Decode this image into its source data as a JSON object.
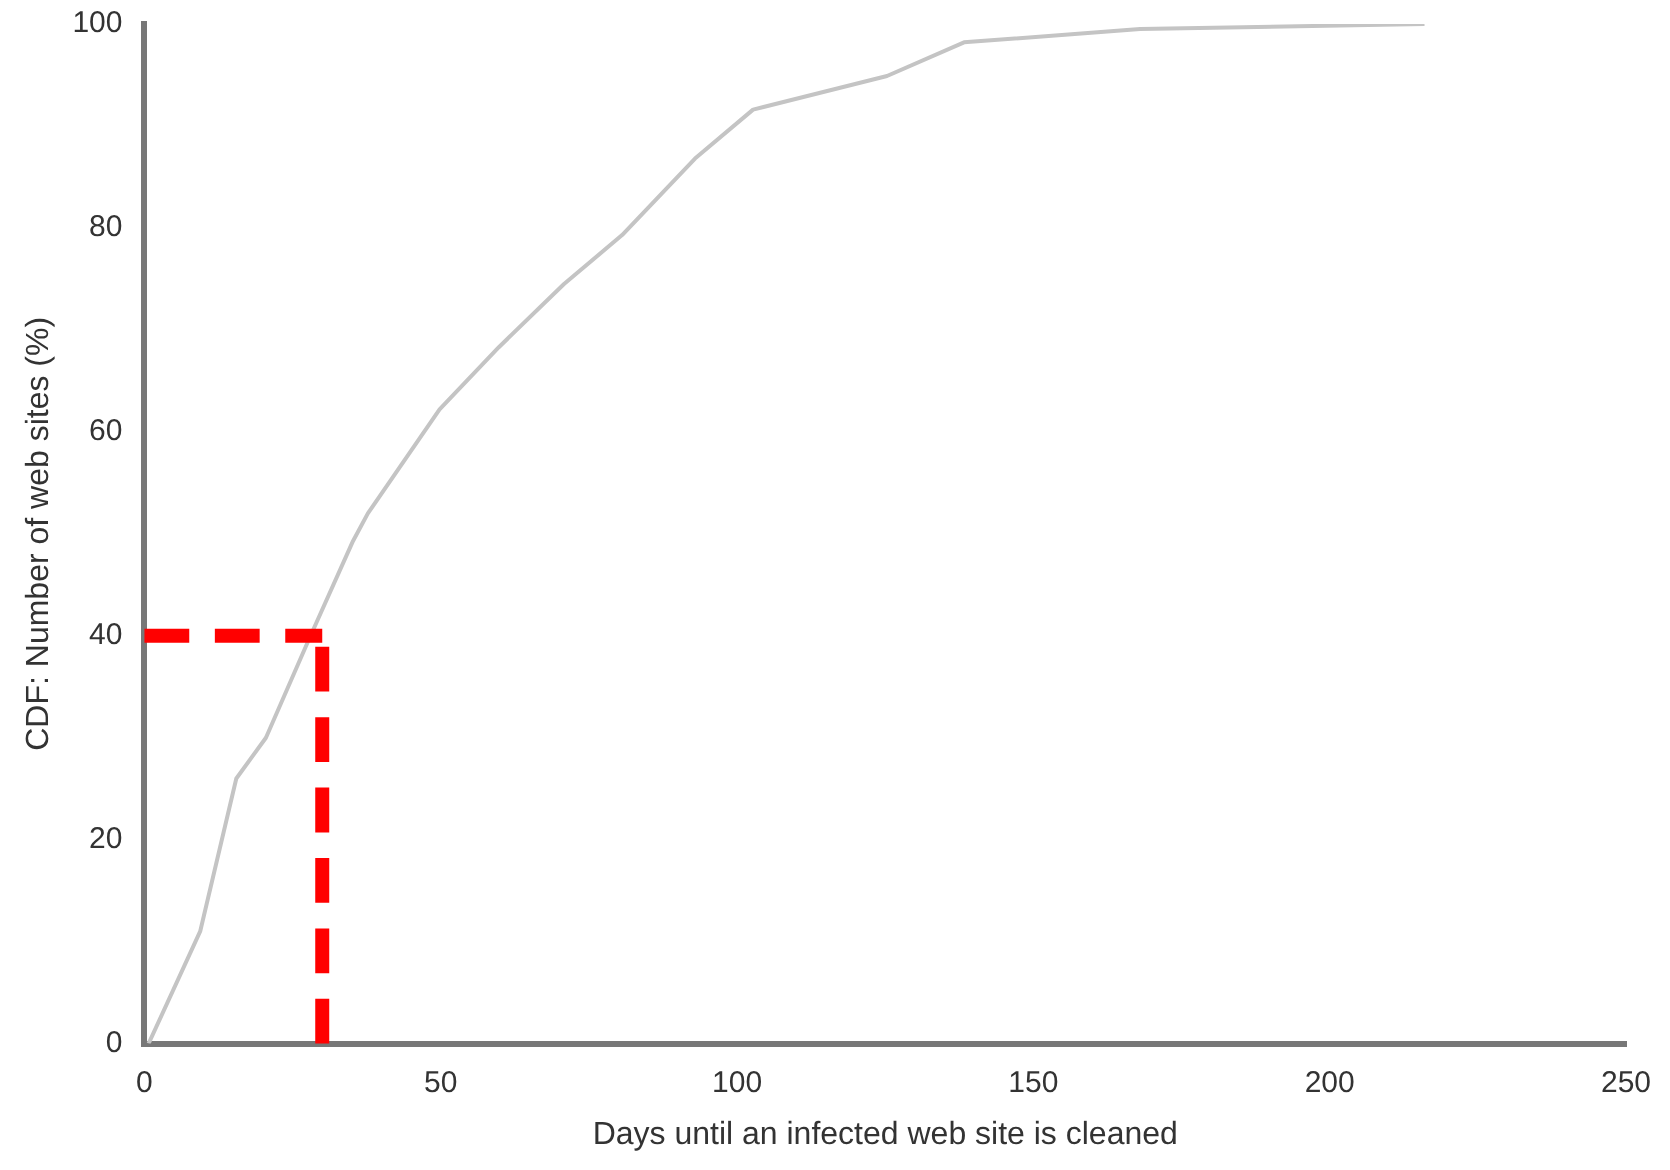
{
  "chart_data": {
    "type": "line",
    "xlabel": "Days until an infected web site is cleaned",
    "ylabel": "CDF: Number of web sites (%)",
    "series": [
      {
        "color": "#c4c4c4",
        "x": [
          0.7,
          9.4,
          15.5,
          20.5,
          27.8,
          35.2,
          37.7,
          49.8,
          59.8,
          70.8,
          80.6,
          92.9,
          102.7,
          125.3,
          138.3,
          168,
          216
        ],
        "values": [
          0,
          11,
          26,
          30,
          39.7,
          49.3,
          52,
          62.2,
          68.3,
          74.5,
          79.3,
          86.8,
          91.6,
          94.9,
          98.2,
          99.5,
          100
        ]
      }
    ],
    "xlim": [
      0,
      250
    ],
    "xticks": [
      0,
      50,
      100,
      150,
      200,
      250
    ],
    "ylim": [
      0,
      100
    ],
    "yticks": [
      0,
      20,
      40,
      60,
      80,
      100
    ],
    "grid": false,
    "legend": false,
    "marker": "none",
    "line_style": "solid",
    "ref_lines": [
      {
        "axis": "y",
        "value": 40,
        "color": "#ff0000",
        "line_style": "dashed"
      },
      {
        "axis": "x",
        "value": 30,
        "color": "#ff0000",
        "line_style": "dashed"
      }
    ]
  }
}
